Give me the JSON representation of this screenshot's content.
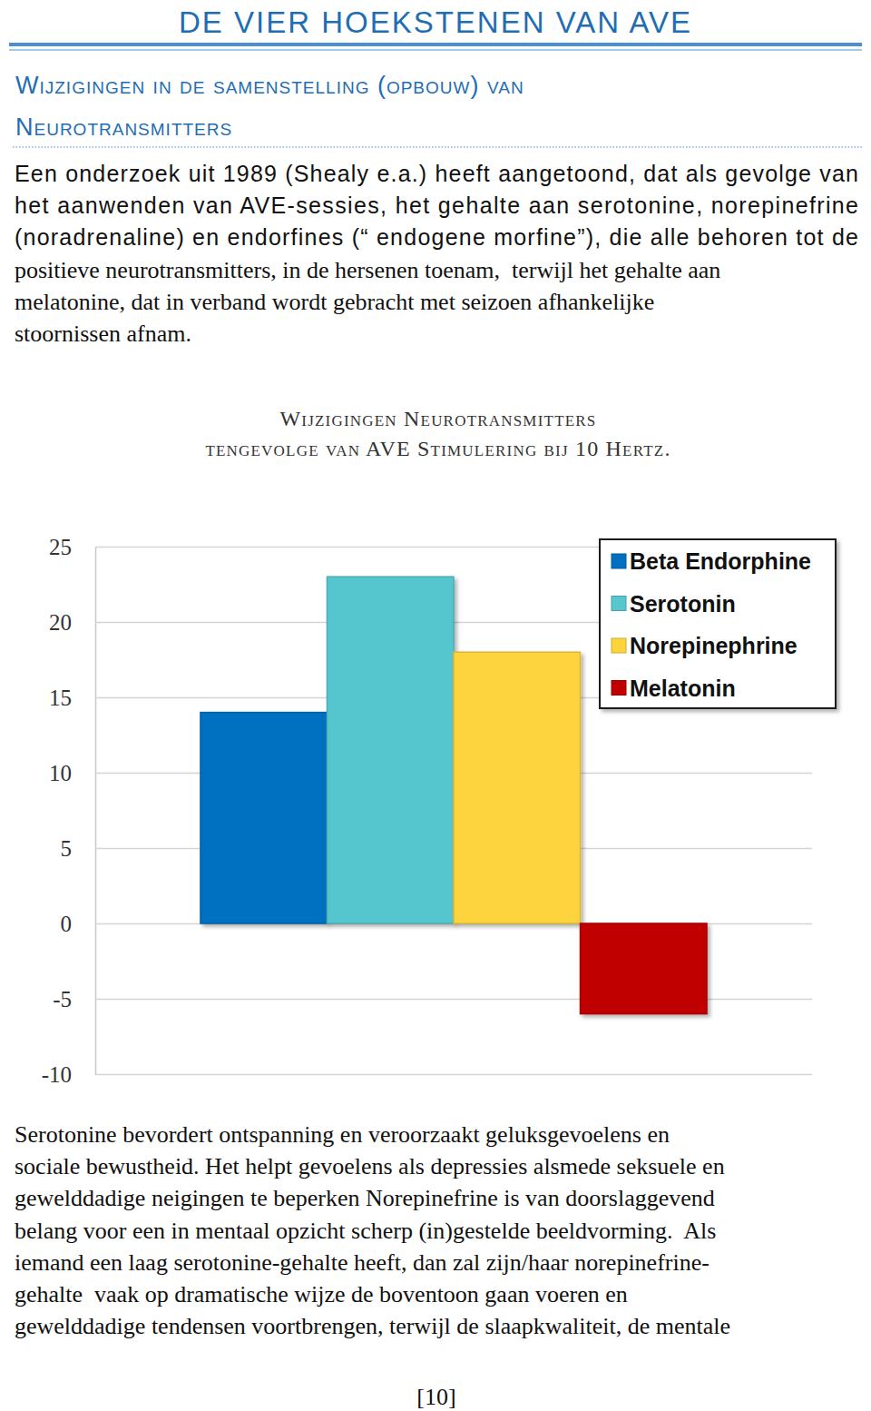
{
  "header": {
    "title": "DE VIER HOEKSTENEN VAN AVE"
  },
  "section": {
    "heading": [
      "Wijzigingen in de samenstelling (opbouw) van",
      "Neurotransmitters"
    ]
  },
  "paragraphs": [
    [
      "Een onderzoek uit 1989 (Shealy e.a.) heeft aangetoond, dat als gevolge van",
      "het aanwenden van AVE-sessies, het gehalte aan serotonine, norepinefrine",
      "(noradrenaline) en endorfines (“ endogene morfine”), die alle behoren tot de",
      "positieve neurotransmitters, in de hersenen toenam,  terwijl het gehalte aan",
      "melatonine, dat in verband wordt gebracht met seizoen afhankelijke",
      "stoornissen afnam."
    ],
    [
      "Serotonine bevordert ontspanning en veroorzaakt geluksgevoelens en",
      "sociale bewustheid. Het helpt gevoelens als depressies alsmede seksuele en",
      "gewelddadige neigingen te beperken Norepinefrine is van doorslaggevend",
      "belang voor een in mentaal opzicht scherp (in)gestelde beeldvorming.  Als",
      "iemand een laag serotonine-gehalte heeft, dan zal zijn/haar norepinefrine-",
      "gehalte  vaak op dramatische wijze de boventoon gaan voeren en",
      "gewelddadige tendensen voortbrengen, terwijl de slaapkwaliteit, de mentale"
    ]
  ],
  "chart_data": {
    "type": "bar",
    "title": "Wijzigingen Neurotransmitters",
    "subtitle": "tengevolge van AVE Stimulering bij 10 Hertz.",
    "categories": [
      null
    ],
    "series": [
      {
        "name": "Beta Endorphine",
        "color": "#0070c0",
        "values": [
          14
        ]
      },
      {
        "name": "Serotonin",
        "color": "#57c6ce",
        "values": [
          23
        ]
      },
      {
        "name": "Norepinephrine",
        "color": "#fdd43c",
        "values": [
          18
        ]
      },
      {
        "name": "Melatonin",
        "color": "#c00000",
        "values": [
          -6
        ]
      }
    ],
    "ylim": [
      -10,
      25
    ],
    "yticks": [
      -10,
      -5,
      0,
      5,
      10,
      15,
      20,
      25
    ],
    "grid": true,
    "legend": "upper right",
    "tick_labels": "y",
    "data_labels": false
  },
  "footer": {
    "page_number": "[10]"
  }
}
